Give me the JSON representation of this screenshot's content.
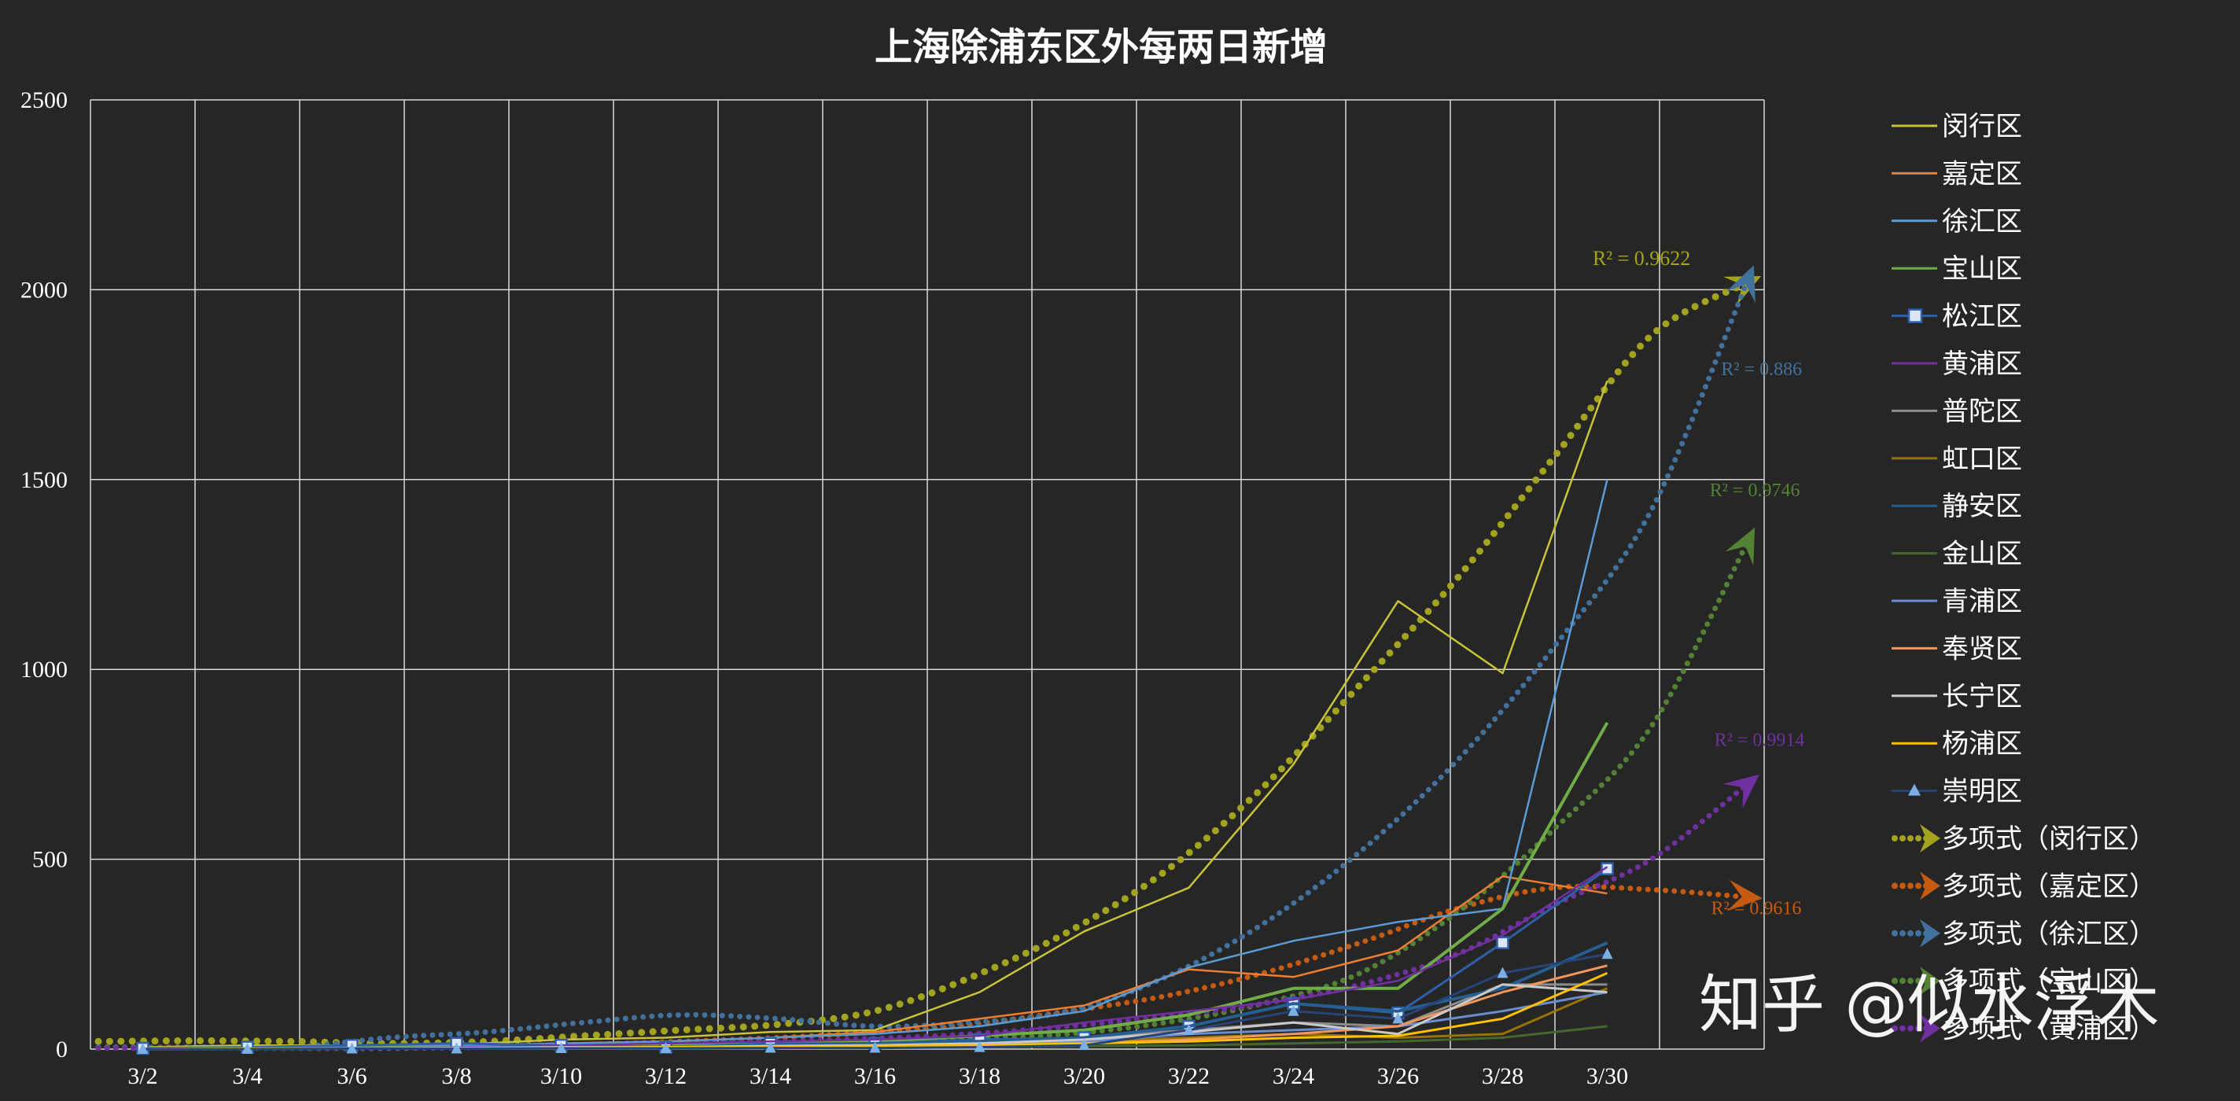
{
  "colors": {
    "background": "#262626",
    "grid": "#d9d9d9",
    "text": "#ffffff"
  },
  "watermark": "知乎 @似水浮木",
  "chart_data": {
    "type": "line",
    "title": "上海除浦东区外每两日新增",
    "categories": [
      "3/2",
      "3/4",
      "3/6",
      "3/8",
      "3/10",
      "3/12",
      "3/14",
      "3/16",
      "3/18",
      "3/20",
      "3/22",
      "3/24",
      "3/26",
      "3/28",
      "3/30"
    ],
    "axis_categories": [
      "3/2",
      "3/4",
      "3/6",
      "3/8",
      "3/10",
      "3/12",
      "3/14",
      "3/16",
      "3/18",
      "3/20",
      "3/22",
      "3/24",
      "3/26",
      "3/28",
      "3/30",
      ""
    ],
    "xlabel": "",
    "ylabel": "",
    "ylim": [
      0,
      2500
    ],
    "yticks": [
      0,
      500,
      1000,
      1500,
      2000,
      2500
    ],
    "grid": true,
    "legend_position": "right",
    "series": [
      {
        "name": "闵行区",
        "color": "#c9c33a",
        "width": 2.5,
        "values": [
          5,
          10,
          10,
          12,
          25,
          30,
          45,
          50,
          150,
          310,
          425,
          750,
          1180,
          990,
          1760
        ]
      },
      {
        "name": "嘉定区",
        "color": "#ed7d31",
        "width": 2.5,
        "values": [
          2,
          5,
          5,
          8,
          15,
          20,
          30,
          45,
          80,
          115,
          210,
          190,
          260,
          455,
          410
        ]
      },
      {
        "name": "徐汇区",
        "color": "#5b9bd5",
        "width": 2.5,
        "values": [
          2,
          5,
          8,
          10,
          15,
          20,
          30,
          40,
          60,
          100,
          215,
          285,
          335,
          370,
          1500
        ]
      },
      {
        "name": "宝山区",
        "color": "#70ad47",
        "width": 4,
        "values": [
          2,
          3,
          5,
          5,
          10,
          12,
          15,
          20,
          35,
          50,
          90,
          160,
          160,
          370,
          860
        ]
      },
      {
        "name": "松江区",
        "color": "#2e5faa",
        "width": 3,
        "marker": "square",
        "values": [
          2,
          5,
          10,
          15,
          10,
          5,
          15,
          15,
          25,
          30,
          60,
          120,
          95,
          280,
          475
        ]
      },
      {
        "name": "黄浦区",
        "color": "#7030a0",
        "width": 2.5,
        "values": [
          0,
          2,
          2,
          5,
          10,
          15,
          20,
          25,
          35,
          70,
          100,
          130,
          180,
          300,
          480
        ]
      },
      {
        "name": "普陀区",
        "color": "#8c8c8c",
        "width": 3,
        "values": [
          0,
          1,
          2,
          3,
          5,
          5,
          10,
          15,
          20,
          30,
          50,
          70,
          60,
          170,
          170
        ]
      },
      {
        "name": "虹口区",
        "color": "#997300",
        "width": 3,
        "values": [
          0,
          1,
          2,
          2,
          4,
          5,
          8,
          10,
          15,
          20,
          30,
          40,
          30,
          40,
          160
        ]
      },
      {
        "name": "静安区",
        "color": "#255e91",
        "width": 4,
        "values": [
          0,
          1,
          2,
          3,
          5,
          5,
          10,
          15,
          20,
          30,
          60,
          120,
          100,
          160,
          280
        ]
      },
      {
        "name": "金山区",
        "color": "#43682b",
        "width": 3,
        "values": [
          0,
          0,
          1,
          1,
          2,
          2,
          3,
          5,
          5,
          8,
          10,
          15,
          20,
          30,
          60
        ]
      },
      {
        "name": "青浦区",
        "color": "#698ed0",
        "width": 3,
        "values": [
          1,
          2,
          2,
          3,
          5,
          5,
          8,
          10,
          15,
          20,
          40,
          50,
          60,
          100,
          150
        ]
      },
      {
        "name": "奉贤区",
        "color": "#f1975a",
        "width": 3,
        "values": [
          0,
          1,
          1,
          2,
          3,
          5,
          5,
          8,
          10,
          15,
          25,
          40,
          60,
          150,
          220
        ]
      },
      {
        "name": "长宁区",
        "color": "#c9c9c9",
        "width": 3,
        "values": [
          0,
          1,
          2,
          3,
          5,
          5,
          8,
          10,
          15,
          25,
          45,
          70,
          40,
          170,
          150
        ]
      },
      {
        "name": "杨浦区",
        "color": "#ffc000",
        "width": 3,
        "values": [
          0,
          1,
          1,
          2,
          3,
          5,
          5,
          8,
          10,
          15,
          20,
          30,
          35,
          80,
          200
        ]
      },
      {
        "name": "崇明区",
        "color": "#264478",
        "width": 3,
        "marker": "triangle",
        "values": [
          0,
          0,
          1,
          1,
          2,
          2,
          3,
          3,
          5,
          10,
          50,
          100,
          80,
          200,
          250
        ]
      }
    ],
    "trendlines": [
      {
        "name": "多项式（闵行区）",
        "color": "#a2a31f",
        "dot_radius": 4.5,
        "r2": "R² = 0.9622",
        "values": [
          20,
          22,
          20,
          15,
          20,
          35,
          50,
          65,
          100,
          190,
          310,
          470,
          690,
          960,
          1240,
          1560,
          1880,
          2020
        ]
      },
      {
        "name": "多项式（嘉定区）",
        "color": "#c55a11",
        "dot_radius": 3.5,
        "r2": "R² = 0.9616",
        "values": [
          5,
          5,
          5,
          5,
          8,
          12,
          20,
          30,
          45,
          65,
          100,
          140,
          200,
          280,
          370,
          425,
          420,
          400
        ]
      },
      {
        "name": "多项式（徐汇区）",
        "color": "#41719c",
        "dot_radius": 3.5,
        "r2": "R² = 0.886",
        "values": [
          5,
          5,
          5,
          30,
          45,
          70,
          90,
          80,
          60,
          70,
          100,
          190,
          330,
          520,
          760,
          1060,
          1420,
          2030
        ]
      },
      {
        "name": "多项式（宝山区）",
        "color": "#548235",
        "dot_radius": 3.5,
        "r2": "R² = 0.9746",
        "values": [
          3,
          3,
          2,
          2,
          5,
          10,
          15,
          20,
          20,
          25,
          40,
          70,
          120,
          200,
          360,
          580,
          850,
          1340
        ]
      },
      {
        "name": "多项式（黄浦区）",
        "color": "#7030a0",
        "dot_radius": 3.5,
        "r2": "R² = 0.9914",
        "values": [
          2,
          3,
          3,
          5,
          8,
          10,
          15,
          20,
          28,
          40,
          60,
          85,
          120,
          170,
          250,
          380,
          500,
          700
        ]
      }
    ],
    "annotations": [
      "R² = 0.9622",
      "R² = 0.886",
      "R² = 0.9746",
      "R² = 0.9914",
      "R² = 0.9616"
    ]
  }
}
